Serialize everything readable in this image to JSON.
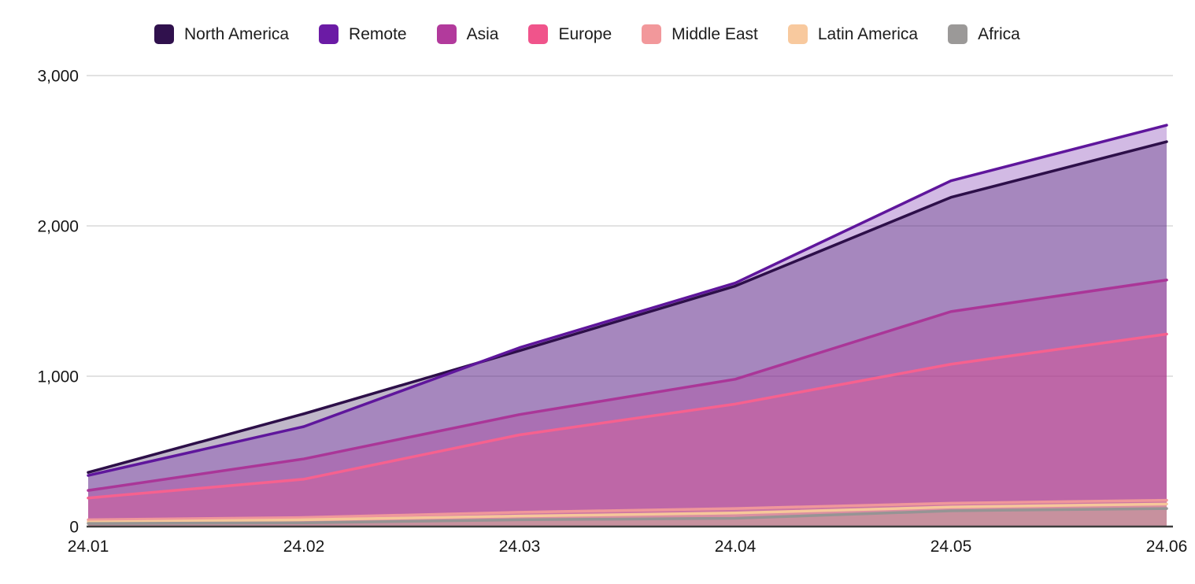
{
  "chart_data": {
    "type": "area",
    "mode": "overlapping-semi-transparent",
    "title": "",
    "xlabel": "",
    "ylabel": "",
    "categories": [
      "24.01",
      "24.02",
      "24.03",
      "24.04",
      "24.05",
      "24.06"
    ],
    "series": [
      {
        "name": "North America",
        "color": "#30114d",
        "line_color": "#2d0f49",
        "values": [
          360,
          750,
          1170,
          1600,
          2190,
          2560
        ]
      },
      {
        "name": "Remote",
        "color": "#6b1ba5",
        "line_color": "#5f169c",
        "values": [
          340,
          665,
          1190,
          1620,
          2300,
          2670
        ]
      },
      {
        "name": "Asia",
        "color": "#b23a9c",
        "line_color": "#aa3698",
        "values": [
          240,
          450,
          745,
          980,
          1430,
          1640
        ]
      },
      {
        "name": "Europe",
        "color": "#f0548b",
        "line_color": "#f6618f",
        "values": [
          190,
          315,
          610,
          815,
          1080,
          1280
        ]
      },
      {
        "name": "Middle East",
        "color": "#f2989b",
        "line_color": "#ef979b",
        "values": [
          45,
          60,
          95,
          120,
          155,
          175
        ]
      },
      {
        "name": "Latin America",
        "color": "#f8c99e",
        "line_color": "#f6c79a",
        "values": [
          30,
          45,
          70,
          90,
          130,
          150
        ]
      },
      {
        "name": "Africa",
        "color": "#9b9998",
        "line_color": "#969494",
        "values": [
          20,
          25,
          45,
          55,
          105,
          120
        ]
      }
    ],
    "y_ticks": [
      {
        "value": 0,
        "label": "0"
      },
      {
        "value": 1000,
        "label": "1,000"
      },
      {
        "value": 2000,
        "label": "2,000"
      },
      {
        "value": 3000,
        "label": "3,000"
      }
    ],
    "ylim": [
      0,
      3000
    ],
    "grid": "horizontal",
    "legend_position": "top",
    "fill_opacity": 0.3,
    "line_width": 3.5,
    "grid_color": "#d9d9d9",
    "axis_color": "#3d3d3d",
    "label_color": "#161616"
  }
}
